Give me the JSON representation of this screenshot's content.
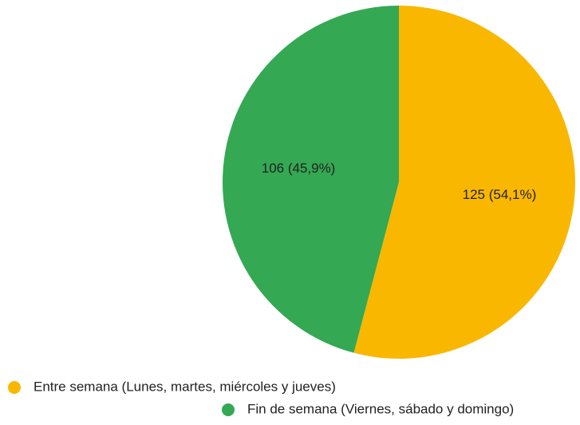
{
  "chart_data": {
    "type": "pie",
    "categories": [
      "Entre semana (Lunes, martes, miércoles y jueves)",
      "Fin de semana (Viernes, sábado y domingo)"
    ],
    "values": [
      125,
      106
    ],
    "value_labels": [
      "125 (54,1%)",
      "106 (45,9%)"
    ],
    "colors": [
      "#f9b700",
      "#34a853"
    ]
  }
}
